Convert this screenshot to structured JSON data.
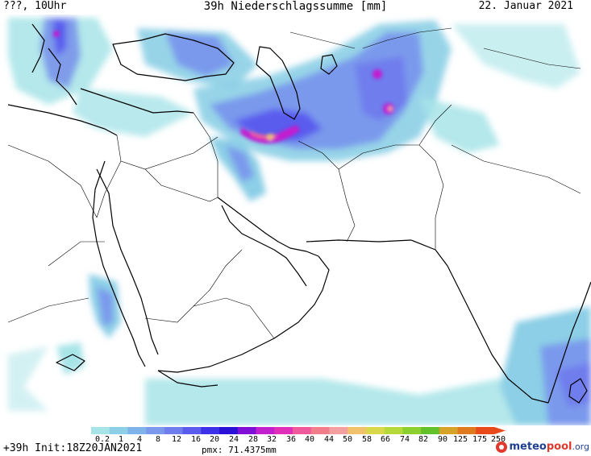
{
  "header": {
    "left": "???, 10Uhr",
    "title": "39h Niederschlagssumme [mm]",
    "date": "22. Januar 2021"
  },
  "legend": {
    "labels": [
      "0.2",
      "1",
      "4",
      "8",
      "12",
      "16",
      "20",
      "24",
      "28",
      "32",
      "36",
      "40",
      "44",
      "50",
      "58",
      "66",
      "74",
      "82",
      "90",
      "125",
      "175",
      "250"
    ],
    "colors": [
      "#a7e4e8",
      "#8ccfe6",
      "#7fb3ea",
      "#7a99ec",
      "#6f7ded",
      "#5a5cee",
      "#3c30e8",
      "#2a0fd6",
      "#7f0fd6",
      "#c21fcf",
      "#e030b7",
      "#f05a9c",
      "#f27e8c",
      "#f4a0a0",
      "#efc26b",
      "#d9d84a",
      "#b5d93a",
      "#8cd030",
      "#62c02b",
      "#d6a329",
      "#e07a1f",
      "#e84a1c"
    ]
  },
  "footer": {
    "run": "+39h Init:18Z20JAN2021",
    "pmx": "pmx: 71.4375mm",
    "logo_a": "meteo",
    "logo_b": "pool",
    "logo_c": ".org"
  }
}
